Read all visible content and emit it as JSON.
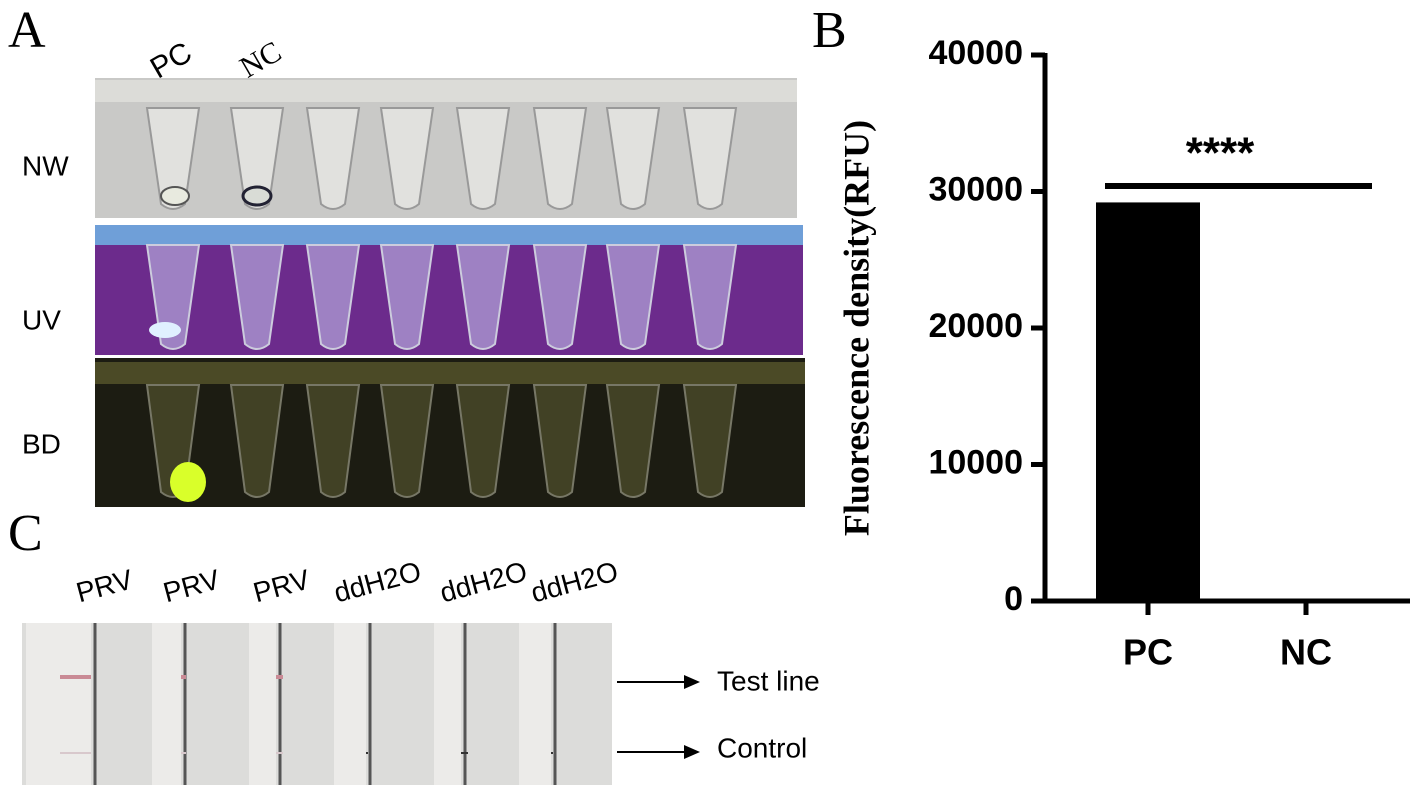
{
  "panels": {
    "a": "A",
    "b": "B",
    "c": "C"
  },
  "panel_a": {
    "columns": [
      "PC",
      "NC"
    ],
    "rows": [
      "NW",
      "UV",
      "BD"
    ]
  },
  "panel_c": {
    "columns": [
      "PRV",
      "PRV",
      "PRV",
      "ddH2O",
      "ddH2O",
      "ddH2O"
    ],
    "annotations": [
      "Test line",
      "Control"
    ]
  },
  "chart_data": {
    "type": "bar",
    "categories": [
      "PC",
      "NC"
    ],
    "values": [
      29200,
      0
    ],
    "color": "#000000",
    "ylabel": "Fluorescence density(RFU)",
    "ylim": [
      0,
      40000
    ],
    "yticks": [
      0,
      10000,
      20000,
      30000,
      40000
    ],
    "significance": "****"
  }
}
